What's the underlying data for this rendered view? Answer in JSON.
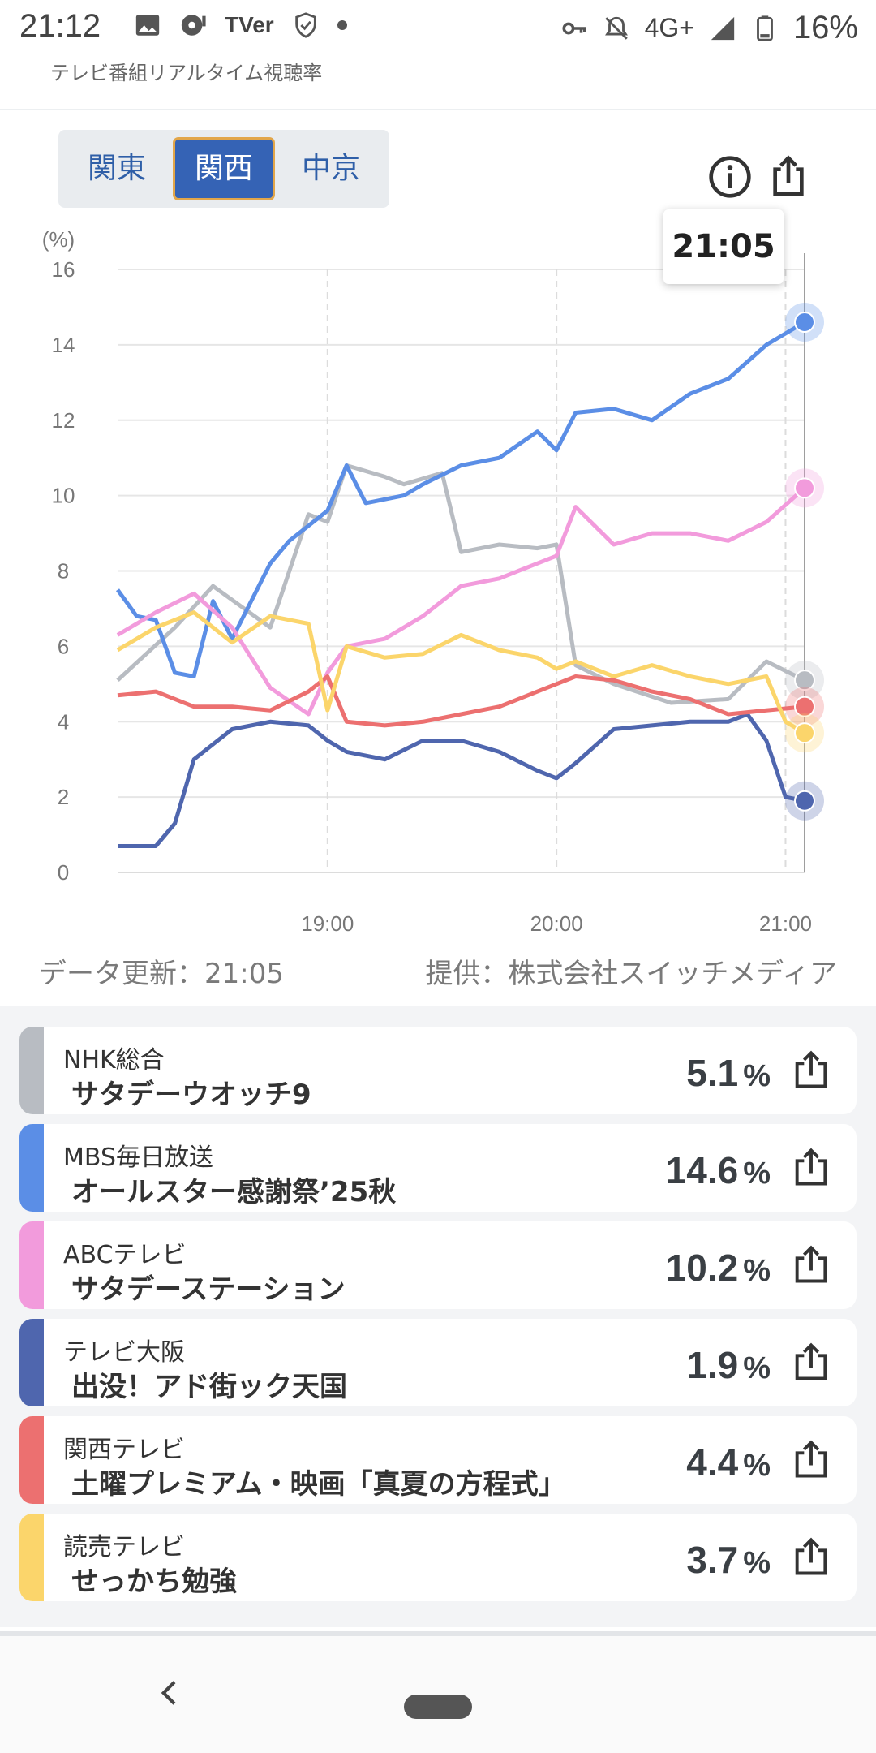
{
  "status_bar": {
    "time": "21:12",
    "tver": "TVer",
    "network": "4G+",
    "battery": "16%",
    "icons": [
      "image-icon",
      "disc-icon",
      "tver-icon",
      "shield-icon",
      "dot-icon",
      "key-icon",
      "bell-off-icon",
      "signal-icon",
      "battery-icon"
    ]
  },
  "app": {
    "title": "テレビ番組リアルタイム視聴率"
  },
  "regions": [
    {
      "label": "関東",
      "active": false
    },
    {
      "label": "関西",
      "active": true
    },
    {
      "label": "中京",
      "active": false
    }
  ],
  "tools": [
    "info-icon",
    "share-icon"
  ],
  "chart_data": {
    "type": "line",
    "ylabel": "(%)",
    "ylim": [
      0,
      16
    ],
    "yticks": [
      "0",
      "2",
      "4",
      "6",
      "8",
      "10",
      "12",
      "14",
      "16"
    ],
    "xticks": [
      "19:00",
      "20:00",
      "21:00"
    ],
    "x_range": [
      "18:05",
      "21:05"
    ],
    "grid": true,
    "cursor_label": "21:05",
    "series": [
      {
        "color": "#b8bcc2",
        "x": [
          "18:05",
          "18:20",
          "18:30",
          "18:45",
          "18:55",
          "19:00",
          "19:05",
          "19:15",
          "19:20",
          "19:30",
          "19:35",
          "19:45",
          "19:55",
          "20:00",
          "20:05",
          "20:15",
          "20:30",
          "20:45",
          "20:55",
          "21:05"
        ],
        "values": [
          5.1,
          6.5,
          7.6,
          6.5,
          9.5,
          9.3,
          10.8,
          10.5,
          10.3,
          10.6,
          8.5,
          8.7,
          8.6,
          8.7,
          5.5,
          5.0,
          4.5,
          4.6,
          5.6,
          5.1
        ]
      },
      {
        "color": "#5b8ee6",
        "x": [
          "18:05",
          "18:10",
          "18:15",
          "18:20",
          "18:25",
          "18:30",
          "18:35",
          "18:45",
          "18:50",
          "18:55",
          "19:00",
          "19:05",
          "19:10",
          "19:20",
          "19:25",
          "19:35",
          "19:45",
          "19:55",
          "20:00",
          "20:05",
          "20:15",
          "20:25",
          "20:35",
          "20:45",
          "20:55",
          "21:05"
        ],
        "values": [
          7.5,
          6.8,
          6.7,
          5.3,
          5.2,
          7.2,
          6.2,
          8.2,
          8.8,
          9.2,
          9.6,
          10.8,
          9.8,
          10.0,
          10.3,
          10.8,
          11.0,
          11.7,
          11.2,
          12.2,
          12.3,
          12.0,
          12.7,
          13.1,
          14.0,
          14.6
        ]
      },
      {
        "color": "#f29bdc",
        "x": [
          "18:05",
          "18:15",
          "18:25",
          "18:35",
          "18:45",
          "18:55",
          "19:00",
          "19:05",
          "19:15",
          "19:25",
          "19:35",
          "19:45",
          "19:55",
          "20:00",
          "20:05",
          "20:15",
          "20:25",
          "20:35",
          "20:45",
          "20:55",
          "21:05"
        ],
        "values": [
          6.3,
          6.9,
          7.4,
          6.5,
          4.9,
          4.2,
          5.3,
          6.0,
          6.2,
          6.8,
          7.6,
          7.8,
          8.2,
          8.4,
          9.7,
          8.7,
          9.0,
          9.0,
          8.8,
          9.3,
          10.2
        ]
      },
      {
        "color": "#4f66ae",
        "x": [
          "18:05",
          "18:15",
          "18:20",
          "18:25",
          "18:30",
          "18:35",
          "18:45",
          "18:55",
          "19:00",
          "19:05",
          "19:15",
          "19:25",
          "19:35",
          "19:45",
          "19:55",
          "20:00",
          "20:05",
          "20:15",
          "20:25",
          "20:35",
          "20:45",
          "20:50",
          "20:55",
          "21:00",
          "21:05"
        ],
        "values": [
          0.7,
          0.7,
          1.3,
          3.0,
          3.4,
          3.8,
          4.0,
          3.9,
          3.5,
          3.2,
          3.0,
          3.5,
          3.5,
          3.2,
          2.7,
          2.5,
          2.9,
          3.8,
          3.9,
          4.0,
          4.0,
          4.2,
          3.5,
          2.0,
          1.9
        ]
      },
      {
        "color": "#ec7070",
        "x": [
          "18:05",
          "18:15",
          "18:25",
          "18:35",
          "18:45",
          "18:55",
          "19:00",
          "19:05",
          "19:15",
          "19:25",
          "19:35",
          "19:45",
          "19:55",
          "20:00",
          "20:05",
          "20:15",
          "20:25",
          "20:35",
          "20:45",
          "20:55",
          "21:05"
        ],
        "values": [
          4.7,
          4.8,
          4.4,
          4.4,
          4.3,
          4.8,
          5.2,
          4.0,
          3.9,
          4.0,
          4.2,
          4.4,
          4.8,
          5.0,
          5.2,
          5.1,
          4.8,
          4.6,
          4.2,
          4.3,
          4.4
        ]
      },
      {
        "color": "#fbd56b",
        "x": [
          "18:05",
          "18:15",
          "18:25",
          "18:35",
          "18:45",
          "18:55",
          "19:00",
          "19:05",
          "19:15",
          "19:25",
          "19:35",
          "19:45",
          "19:55",
          "20:00",
          "20:05",
          "20:15",
          "20:25",
          "20:35",
          "20:45",
          "20:55",
          "21:00",
          "21:05"
        ],
        "values": [
          5.9,
          6.5,
          6.9,
          6.1,
          6.8,
          6.6,
          4.3,
          6.0,
          5.7,
          5.8,
          6.3,
          5.9,
          5.7,
          5.4,
          5.6,
          5.2,
          5.5,
          5.2,
          5.0,
          5.2,
          4.0,
          3.7
        ]
      }
    ]
  },
  "footer": {
    "update_label": "データ更新：21:05",
    "provider_label": "提供：株式会社スイッチメディア"
  },
  "channels": [
    {
      "name": "NHK総合",
      "program": "サタデーウオッチ9",
      "rating": "5.1",
      "unit": "%",
      "color": "#b8bcc2"
    },
    {
      "name": "MBS毎日放送",
      "program": "オールスター感謝祭’25秋",
      "rating": "14.6",
      "unit": "%",
      "color": "#5b8ee6"
    },
    {
      "name": "ABCテレビ",
      "program": "サタデーステーション",
      "rating": "10.2",
      "unit": "%",
      "color": "#f29bdc"
    },
    {
      "name": "テレビ大阪",
      "program": "出没！アド街ック天国",
      "rating": "1.9",
      "unit": "%",
      "color": "#4f66ae"
    },
    {
      "name": "関西テレビ",
      "program": "土曜プレミアム・映画「真夏の方程式」",
      "rating": "4.4",
      "unit": "%",
      "color": "#ec7070"
    },
    {
      "name": "読売テレビ",
      "program": "せっかち勉強",
      "rating": "3.7",
      "unit": "%",
      "color": "#fbd56b"
    }
  ]
}
